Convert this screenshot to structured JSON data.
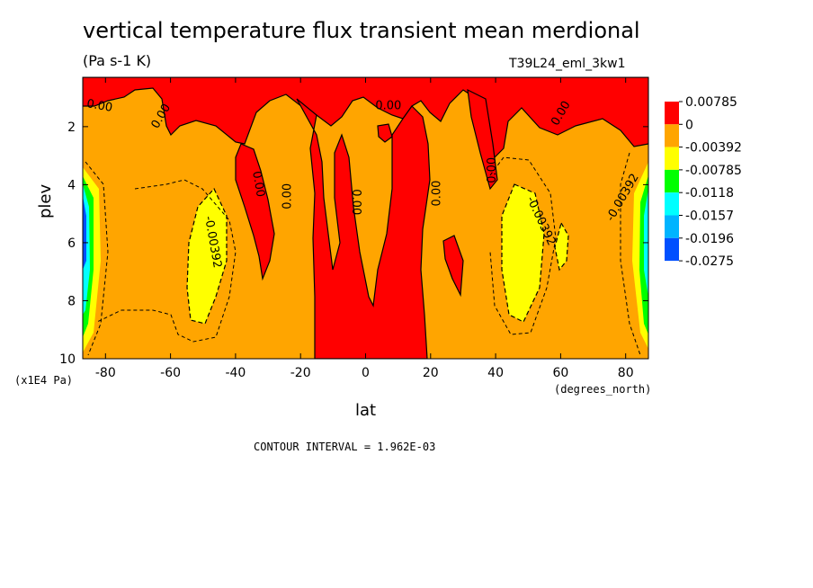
{
  "chart_data": {
    "type": "heatmap",
    "title": "vertical temperature flux transient mean merdional",
    "units": "(Pa s-1 K)",
    "run_label": "T39L24_eml_3kw1",
    "xlabel": "lat",
    "x_units": "(degrees_north)",
    "ylabel": "plev",
    "y_units": "(x1E4 Pa)",
    "contour_interval": "CONTOUR INTERVAL = 1.962E-03",
    "xlim": [
      -87,
      87
    ],
    "ylim": [
      10,
      0.3
    ],
    "x_ticks": [
      "-80",
      "-60",
      "-40",
      "-20",
      "0",
      "20",
      "40",
      "60",
      "80"
    ],
    "x_tick_values": [
      -80,
      -60,
      -40,
      -20,
      0,
      20,
      40,
      60,
      80
    ],
    "y_ticks": [
      "2",
      "4",
      "6",
      "8",
      "10"
    ],
    "y_tick_values": [
      2,
      4,
      6,
      8,
      10
    ],
    "legend": {
      "placement": "right",
      "levels": [
        {
          "label": "0.00785",
          "color": "#ff0000"
        },
        {
          "label": "0",
          "color": "#ffa500"
        },
        {
          "label": "-0.00392",
          "color": "#ffff00"
        },
        {
          "label": "-0.00785",
          "color": "#00ff00"
        },
        {
          "label": "-0.0118",
          "color": "#00ffff"
        },
        {
          "label": "-0.0157",
          "color": "#00b4ff"
        },
        {
          "label": "-0.0196",
          "color": "#0050ff"
        },
        {
          "label": "-0.0275",
          "color": null
        }
      ]
    },
    "contour_labels": [
      {
        "text": "0.00",
        "lat": -82,
        "plev": 1.4,
        "angle": 10
      },
      {
        "text": "0.00",
        "lat": -62,
        "plev": 1.7,
        "angle": -60
      },
      {
        "text": "0.00",
        "lat": -34,
        "plev": 4.0,
        "angle": 80
      },
      {
        "text": "0.00",
        "lat": -23,
        "plev": 4.4,
        "angle": -90
      },
      {
        "text": "0.00",
        "lat": -4,
        "plev": 4.6,
        "angle": 90
      },
      {
        "text": "0.00",
        "lat": 7,
        "plev": 1.4,
        "angle": 0
      },
      {
        "text": "0.00",
        "lat": 23,
        "plev": 4.3,
        "angle": -90
      },
      {
        "text": "0.00",
        "lat": 40,
        "plev": 3.5,
        "angle": -90
      },
      {
        "text": "0.00",
        "lat": 61,
        "plev": 1.6,
        "angle": -60
      },
      {
        "text": "-0.00392",
        "lat": -48,
        "plev": 6.0,
        "angle": 80
      },
      {
        "text": "-0.00392",
        "lat": 53,
        "plev": 5.3,
        "angle": 65
      },
      {
        "text": "-0.00392",
        "lat": 80,
        "plev": 4.5,
        "angle": -60
      }
    ]
  }
}
